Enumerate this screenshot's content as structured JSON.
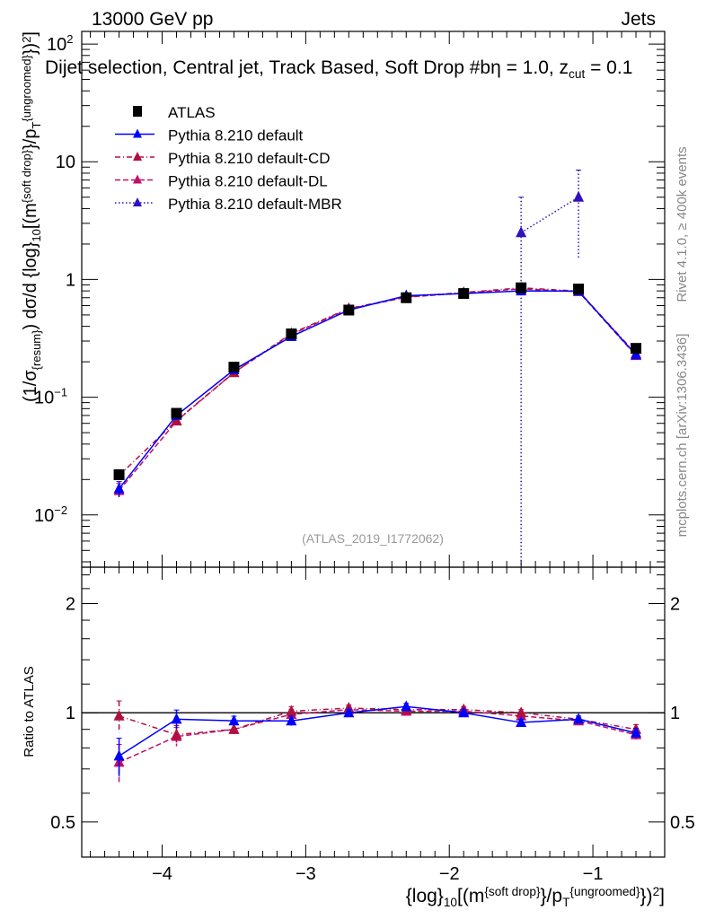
{
  "header": {
    "left": "13000 GeV pp",
    "right": "Jets",
    "title_parts": [
      {
        "t": "Dijet selection, Central jet, Track Based, Soft Drop #bη = 1.0, z"
      },
      {
        "t": "cut",
        "sub": true
      },
      {
        "t": " = 0.1"
      }
    ]
  },
  "side": {
    "rivet": "Rivet 4.1.0, ≥ 400k events",
    "mcplots": "mcplots.cern.ch [arXiv:1306.3436]"
  },
  "watermark": "(ATLAS_2019_I1772062)",
  "colors": {
    "atlas": "#000000",
    "default": "#0000ff",
    "cd": "#b0103f",
    "dl": "#c0106a",
    "mbr": "#3010c0"
  },
  "chart_data": [
    {
      "type": "line",
      "panel": "main",
      "yscale": "log",
      "x": [
        -4.3,
        -3.9,
        -3.5,
        -3.1,
        -2.7,
        -2.3,
        -1.9,
        -1.5,
        -1.1,
        -0.7
      ],
      "xlim": [
        -4.56,
        -0.5
      ],
      "ylim": [
        0.0036,
        128
      ],
      "yticks": [
        {
          "v": 100,
          "base": "10",
          "exp": "2"
        },
        {
          "v": 10,
          "base": "10",
          "exp": ""
        },
        {
          "v": 1,
          "base": "1",
          "exp": ""
        },
        {
          "v": 0.1,
          "base": "10",
          "exp": "−1"
        },
        {
          "v": 0.01,
          "base": "10",
          "exp": "−2"
        }
      ],
      "ylabel_parts": [
        {
          "t": "(1/σ"
        },
        {
          "t": "{resum}",
          "sub": true
        },
        {
          "t": ") dσ/d {log}"
        },
        {
          "t": "10",
          "sub": true
        },
        {
          "t": "[(m"
        },
        {
          "t": "{soft drop}",
          "sup": true
        },
        {
          "t": "}/p"
        },
        {
          "t": "T",
          "sub": true
        },
        {
          "t": "{ungroomed}",
          "sup": true
        },
        {
          "t": "})"
        },
        {
          "t": "2",
          "sup": true
        },
        {
          "t": "]"
        }
      ],
      "legend_position": "top-left",
      "series": [
        {
          "name": "ATLAS",
          "key": "atlas",
          "marker": "square",
          "values": [
            0.022,
            0.073,
            0.18,
            0.345,
            0.55,
            0.7,
            0.76,
            0.85,
            0.83,
            0.26
          ],
          "err": [
            0.1,
            0.04,
            0.03,
            0.03,
            0.02,
            0.02,
            0.02,
            0.02,
            0.02,
            0.03
          ]
        },
        {
          "name": "Pythia 8.210 default",
          "key": "default",
          "style": "solid",
          "values": [
            0.0167,
            0.07,
            0.171,
            0.328,
            0.55,
            0.728,
            0.76,
            0.8,
            0.797,
            0.229
          ],
          "err": [
            0.15,
            0.05,
            0.03,
            0.03,
            0.02,
            0.02,
            0.02,
            0.02,
            0.02,
            0.03
          ]
        },
        {
          "name": "Pythia 8.210 default-CD",
          "key": "cd",
          "style": "dashdot",
          "values": [
            0.0216,
            0.0635,
            0.162,
            0.348,
            0.567,
            0.714,
            0.775,
            0.85,
            0.797,
            0.234
          ],
          "err": [
            0.12,
            0.06,
            0.03,
            0.03,
            0.02,
            0.02,
            0.02,
            0.02,
            0.02,
            0.03
          ]
        },
        {
          "name": "Pythia 8.210 default-DL",
          "key": "dl",
          "style": "dashed",
          "values": [
            0.0161,
            0.0628,
            0.162,
            0.342,
            0.561,
            0.707,
            0.768,
            0.833,
            0.789,
            0.226
          ],
          "err": [
            0.15,
            0.06,
            0.03,
            0.03,
            0.02,
            0.02,
            0.02,
            0.02,
            0.02,
            0.03
          ]
        },
        {
          "name": "Pythia 8.210 default-MBR",
          "key": "mbr",
          "style": "dotted",
          "x": [
            -1.5,
            -1.1
          ],
          "values": [
            2.5,
            5.0
          ],
          "err_lo": [
            2.5,
            3.5
          ],
          "err_hi": [
            2.5,
            3.5
          ]
        }
      ]
    },
    {
      "type": "line",
      "panel": "ratio",
      "yscale": "log",
      "ylabel": "Ratio to ATLAS",
      "xlabel_parts": [
        {
          "t": "{log}"
        },
        {
          "t": "10",
          "sub": true
        },
        {
          "t": "[(m"
        },
        {
          "t": "{soft drop}",
          "sup": true
        },
        {
          "t": "}/p"
        },
        {
          "t": "T",
          "sub": true
        },
        {
          "t": "{ungroomed}",
          "sup": true
        },
        {
          "t": "})"
        },
        {
          "t": "2",
          "sup": true
        },
        {
          "t": "]"
        }
      ],
      "x": [
        -4.3,
        -3.9,
        -3.5,
        -3.1,
        -2.7,
        -2.3,
        -1.9,
        -1.5,
        -1.1,
        -0.7
      ],
      "ylim": [
        0.4,
        2.52
      ],
      "yticks": [
        {
          "v": 2,
          "label": "2"
        },
        {
          "v": 1,
          "label": "1"
        },
        {
          "v": 0.5,
          "label": "0.5"
        }
      ],
      "xticks": [
        {
          "v": -4,
          "label": "−4"
        },
        {
          "v": -3,
          "label": "−3"
        },
        {
          "v": -2,
          "label": "−2"
        },
        {
          "v": -1,
          "label": "−1"
        }
      ],
      "series": [
        {
          "key": "default",
          "style": "solid",
          "values": [
            0.76,
            0.96,
            0.95,
            0.95,
            1.0,
            1.04,
            1.0,
            0.94,
            0.96,
            0.88
          ],
          "err": [
            0.12,
            0.06,
            0.03,
            0.03,
            0.02,
            0.02,
            0.02,
            0.02,
            0.02,
            0.03
          ]
        },
        {
          "key": "cd",
          "style": "dashdot",
          "values": [
            0.98,
            0.87,
            0.9,
            1.01,
            1.03,
            1.02,
            1.02,
            1.0,
            0.96,
            0.9
          ],
          "err": [
            0.1,
            0.06,
            0.03,
            0.03,
            0.02,
            0.02,
            0.02,
            0.02,
            0.02,
            0.03
          ]
        },
        {
          "key": "dl",
          "style": "dashed",
          "values": [
            0.73,
            0.86,
            0.9,
            0.99,
            1.02,
            1.01,
            1.01,
            0.98,
            0.95,
            0.87
          ],
          "err": [
            0.12,
            0.06,
            0.03,
            0.03,
            0.02,
            0.02,
            0.02,
            0.02,
            0.02,
            0.03
          ]
        }
      ]
    }
  ]
}
